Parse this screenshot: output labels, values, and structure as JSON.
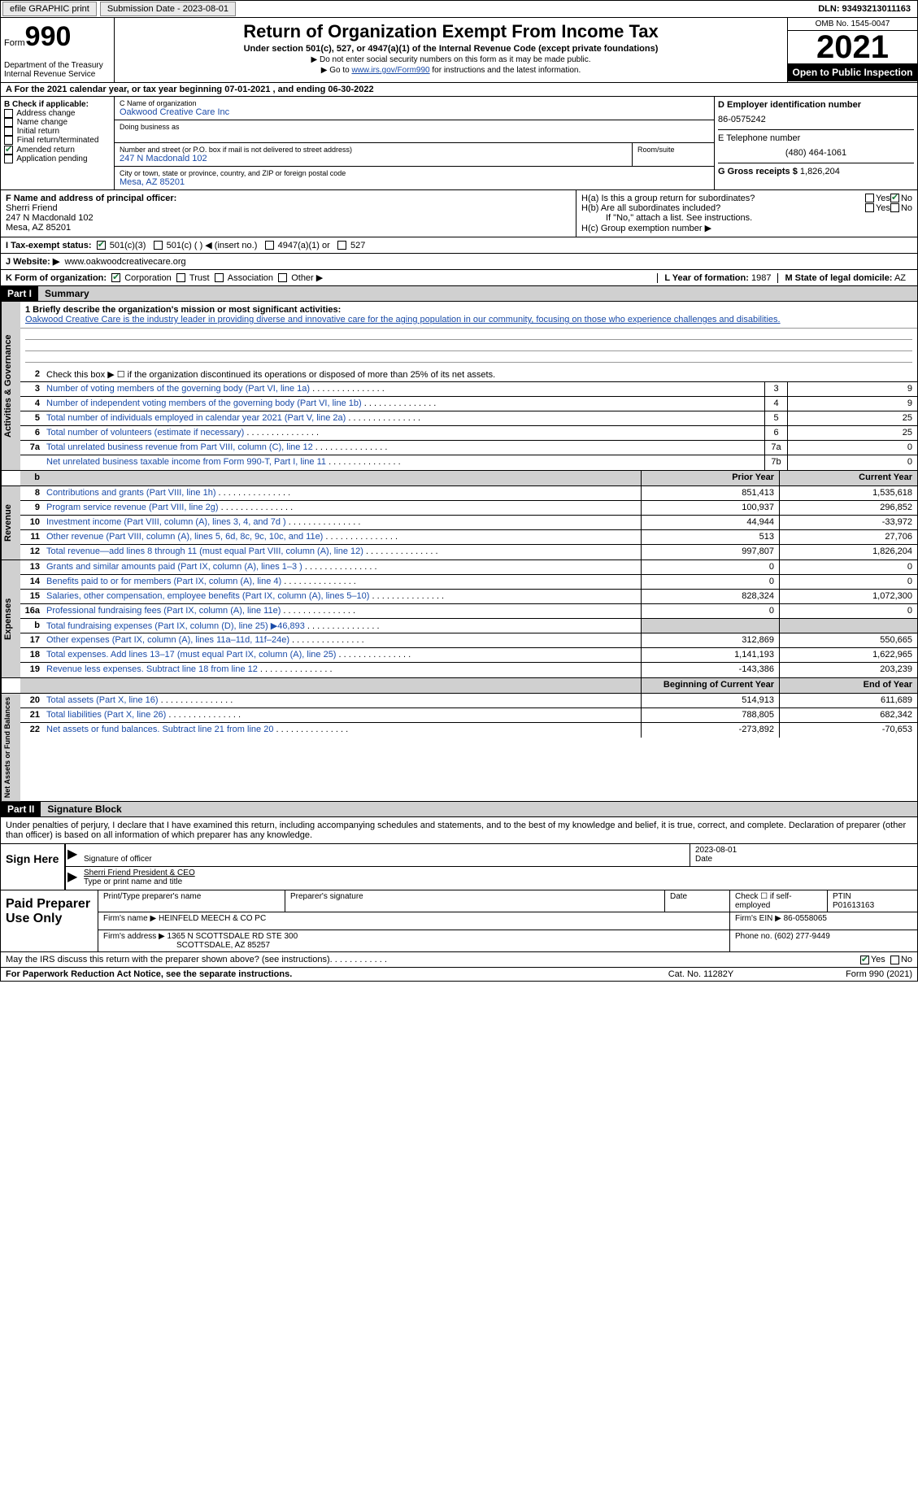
{
  "topbar": {
    "efile": "efile GRAPHIC print",
    "sub_label": "Submission Date - 2023-08-01",
    "dln": "DLN: 93493213011163"
  },
  "header": {
    "form_word": "Form",
    "form_no": "990",
    "dept": "Department of the Treasury\nInternal Revenue Service",
    "title": "Return of Organization Exempt From Income Tax",
    "subtitle": "Under section 501(c), 527, or 4947(a)(1) of the Internal Revenue Code (except private foundations)",
    "note1": "▶ Do not enter social security numbers on this form as it may be made public.",
    "note2_pre": "▶ Go to ",
    "note2_link": "www.irs.gov/Form990",
    "note2_post": " for instructions and the latest information.",
    "omb": "OMB No. 1545-0047",
    "year": "2021",
    "inspect": "Open to Public Inspection"
  },
  "row_a": "A For the 2021 calendar year, or tax year beginning 07-01-2021   , and ending 06-30-2022",
  "box_b": {
    "label": "B Check if applicable:",
    "items": [
      "Address change",
      "Name change",
      "Initial return",
      "Final return/terminated",
      "Amended return",
      "Application pending"
    ],
    "checked_idx": 4
  },
  "box_c": {
    "name_lbl": "C Name of organization",
    "name": "Oakwood Creative Care Inc",
    "dba_lbl": "Doing business as",
    "dba": "",
    "addr_lbl": "Number and street (or P.O. box if mail is not delivered to street address)",
    "addr": "247 N Macdonald 102",
    "room_lbl": "Room/suite",
    "city_lbl": "City or town, state or province, country, and ZIP or foreign postal code",
    "city": "Mesa, AZ  85201"
  },
  "box_d": {
    "ein_lbl": "D Employer identification number",
    "ein": "86-0575242",
    "tel_lbl": "E Telephone number",
    "tel": "(480) 464-1061",
    "gross_lbl": "G Gross receipts $",
    "gross": "1,826,204"
  },
  "box_f": {
    "lbl": "F  Name and address of principal officer:",
    "name": "Sherri Friend",
    "addr1": "247 N Macdonald 102",
    "addr2": "Mesa, AZ  85201"
  },
  "box_h": {
    "a": "H(a)  Is this a group return for subordinates?",
    "b": "H(b)  Are all subordinates included?",
    "b_note": "If \"No,\" attach a list. See instructions.",
    "c": "H(c)  Group exemption number ▶",
    "yes": "Yes",
    "no": "No"
  },
  "row_i": {
    "lbl": "I   Tax-exempt status:",
    "opts": [
      "501(c)(3)",
      "501(c) (  ) ◀ (insert no.)",
      "4947(a)(1) or",
      "527"
    ]
  },
  "row_j": {
    "lbl": "J   Website: ▶",
    "val": "www.oakwoodcreativecare.org"
  },
  "row_k": {
    "lbl": "K Form of organization:",
    "opts": [
      "Corporation",
      "Trust",
      "Association",
      "Other ▶"
    ],
    "l_lbl": "L Year of formation:",
    "l_val": "1987",
    "m_lbl": "M State of legal domicile:",
    "m_val": "AZ"
  },
  "part1": {
    "hdr": "Part I",
    "title": "Summary"
  },
  "mission": {
    "lbl": "1   Briefly describe the organization's mission or most significant activities:",
    "txt": "Oakwood Creative Care is the industry leader in providing diverse and innovative care for the aging population in our community, focusing on those who experience challenges and disabilities."
  },
  "gov_lines": {
    "l2": "Check this box ▶ ☐  if the organization discontinued its operations or disposed of more than 25% of its net assets.",
    "rows": [
      {
        "n": "3",
        "d": "Number of voting members of the governing body (Part VI, line 1a)",
        "c": "3",
        "v": "9"
      },
      {
        "n": "4",
        "d": "Number of independent voting members of the governing body (Part VI, line 1b)",
        "c": "4",
        "v": "9"
      },
      {
        "n": "5",
        "d": "Total number of individuals employed in calendar year 2021 (Part V, line 2a)",
        "c": "5",
        "v": "25"
      },
      {
        "n": "6",
        "d": "Total number of volunteers (estimate if necessary)",
        "c": "6",
        "v": "25"
      },
      {
        "n": "7a",
        "d": "Total unrelated business revenue from Part VIII, column (C), line 12",
        "c": "7a",
        "v": "0"
      },
      {
        "n": "",
        "d": "Net unrelated business taxable income from Form 990-T, Part I, line 11",
        "c": "7b",
        "v": "0"
      }
    ]
  },
  "col_hdrs": {
    "b": "b",
    "prior": "Prior Year",
    "current": "Current Year"
  },
  "revenue": {
    "tab": "Revenue",
    "rows": [
      {
        "n": "8",
        "d": "Contributions and grants (Part VIII, line 1h)",
        "p": "851,413",
        "c": "1,535,618"
      },
      {
        "n": "9",
        "d": "Program service revenue (Part VIII, line 2g)",
        "p": "100,937",
        "c": "296,852"
      },
      {
        "n": "10",
        "d": "Investment income (Part VIII, column (A), lines 3, 4, and 7d )",
        "p": "44,944",
        "c": "-33,972"
      },
      {
        "n": "11",
        "d": "Other revenue (Part VIII, column (A), lines 5, 6d, 8c, 9c, 10c, and 11e)",
        "p": "513",
        "c": "27,706"
      },
      {
        "n": "12",
        "d": "Total revenue—add lines 8 through 11 (must equal Part VIII, column (A), line 12)",
        "p": "997,807",
        "c": "1,826,204"
      }
    ]
  },
  "expenses": {
    "tab": "Expenses",
    "rows": [
      {
        "n": "13",
        "d": "Grants and similar amounts paid (Part IX, column (A), lines 1–3 )",
        "p": "0",
        "c": "0"
      },
      {
        "n": "14",
        "d": "Benefits paid to or for members (Part IX, column (A), line 4)",
        "p": "0",
        "c": "0"
      },
      {
        "n": "15",
        "d": "Salaries, other compensation, employee benefits (Part IX, column (A), lines 5–10)",
        "p": "828,324",
        "c": "1,072,300"
      },
      {
        "n": "16a",
        "d": "Professional fundraising fees (Part IX, column (A), line 11e)",
        "p": "0",
        "c": "0"
      },
      {
        "n": "b",
        "d": "Total fundraising expenses (Part IX, column (D), line 25) ▶46,893",
        "p": "",
        "c": "",
        "grey": true
      },
      {
        "n": "17",
        "d": "Other expenses (Part IX, column (A), lines 11a–11d, 11f–24e)",
        "p": "312,869",
        "c": "550,665"
      },
      {
        "n": "18",
        "d": "Total expenses. Add lines 13–17 (must equal Part IX, column (A), line 25)",
        "p": "1,141,193",
        "c": "1,622,965"
      },
      {
        "n": "19",
        "d": "Revenue less expenses. Subtract line 18 from line 12",
        "p": "-143,386",
        "c": "203,239"
      }
    ]
  },
  "net_hdrs": {
    "b": "Beginning of Current Year",
    "e": "End of Year"
  },
  "netassets": {
    "tab": "Net Assets or Fund Balances",
    "rows": [
      {
        "n": "20",
        "d": "Total assets (Part X, line 16)",
        "p": "514,913",
        "c": "611,689"
      },
      {
        "n": "21",
        "d": "Total liabilities (Part X, line 26)",
        "p": "788,805",
        "c": "682,342"
      },
      {
        "n": "22",
        "d": "Net assets or fund balances. Subtract line 21 from line 20",
        "p": "-273,892",
        "c": "-70,653"
      }
    ]
  },
  "part2": {
    "hdr": "Part II",
    "title": "Signature Block"
  },
  "sig": {
    "decl": "Under penalties of perjury, I declare that I have examined this return, including accompanying schedules and statements, and to the best of my knowledge and belief, it is true, correct, and complete. Declaration of preparer (other than officer) is based on all information of which preparer has any knowledge.",
    "sign_here": "Sign Here",
    "sig_lbl": "Signature of officer",
    "date_lbl": "Date",
    "date": "2023-08-01",
    "name": "Sherri Friend  President & CEO",
    "name_lbl": "Type or print name and title"
  },
  "prep": {
    "hdr": "Paid Preparer Use Only",
    "r1": {
      "a": "Print/Type preparer's name",
      "b": "Preparer's signature",
      "c": "Date",
      "d": "Check ☐ if self-employed",
      "e": "PTIN",
      "e_val": "P01613163"
    },
    "r2": {
      "a": "Firm's name    ▶",
      "a_val": "HEINFELD MEECH & CO PC",
      "b": "Firm's EIN ▶",
      "b_val": "86-0558065"
    },
    "r3": {
      "a": "Firm's address ▶",
      "a_val": "1365 N SCOTTSDALE RD STE 300",
      "a_val2": "SCOTTSDALE, AZ  85257",
      "b": "Phone no.",
      "b_val": "(602) 277-9449"
    }
  },
  "discuss": {
    "q": "May the IRS discuss this return with the preparer shown above? (see instructions)",
    "yes": "Yes",
    "no": "No"
  },
  "footer": {
    "pra": "For Paperwork Reduction Act Notice, see the separate instructions.",
    "cat": "Cat. No. 11282Y",
    "form": "Form 990 (2021)"
  }
}
